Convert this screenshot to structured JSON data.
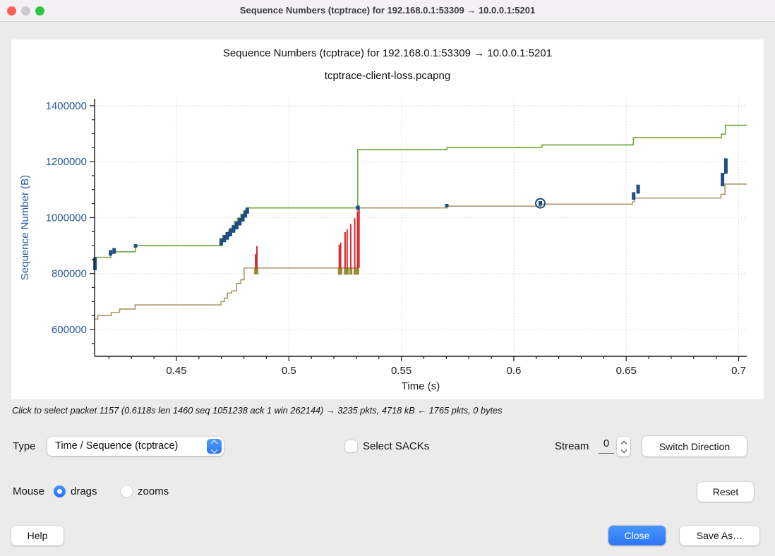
{
  "window": {
    "title": "Sequence Numbers (tcptrace) for 192.168.0.1:53309 → 10.0.0.1:5201"
  },
  "status": {
    "text": "Click to select packet 1157 (0.6118s len 1460 seq 1051238 ack 1 win 262144) → 3235 pkts, 4718 kB ← 1765 pkts, 0 bytes"
  },
  "controls": {
    "type_label": "Type",
    "type_value": "Time / Sequence (tcptrace)",
    "select_sacks_label": "Select SACKs",
    "stream_label": "Stream",
    "stream_value": "0",
    "switch_direction_label": "Switch Direction",
    "mouse_label": "Mouse",
    "drags_label": "drags",
    "zooms_label": "zooms",
    "reset_label": "Reset"
  },
  "buttons": {
    "help": "Help",
    "close": "Close",
    "save_as": "Save As…"
  },
  "chart_data": {
    "type": "line",
    "title": "Sequence Numbers (tcptrace) for 192.168.0.1:53309 → 10.0.0.1:5201",
    "subtitle": "tcptrace-client-loss.pcapng",
    "xlabel": "Time (s)",
    "ylabel": "Sequence Number (B)",
    "xlim": [
      0.4136,
      0.7036
    ],
    "ylim": [
      504000,
      1425000
    ],
    "x_major_ticks": [
      0.45,
      0.5,
      0.55,
      0.6,
      0.65,
      0.7
    ],
    "x_minor_step": 0.01,
    "y_major_ticks": [
      600000,
      800000,
      1000000,
      1200000,
      1400000
    ],
    "y_minor_step": 50000,
    "grid": "dotted-major",
    "colors": {
      "rwin_line": "#79a94a",
      "ack_line": "#ae9d72",
      "segment": "#1d4f82",
      "sack": "#d32b2b",
      "dup_ack": "#958d33",
      "grid": "#d6d6d6",
      "axis": "#1a1a1a",
      "y_text": "#28599c"
    },
    "series": [
      {
        "name": "receive-window",
        "type": "step",
        "color": "#79a94a",
        "width": 1.7,
        "points": [
          [
            0.4136,
            858000
          ],
          [
            0.4208,
            872000
          ],
          [
            0.4222,
            878000
          ],
          [
            0.4318,
            900000
          ],
          [
            0.47,
            918000
          ],
          [
            0.4714,
            926000
          ],
          [
            0.4728,
            948000
          ],
          [
            0.4742,
            962000
          ],
          [
            0.4757,
            986000
          ],
          [
            0.4772,
            998000
          ],
          [
            0.4787,
            1012000
          ],
          [
            0.48,
            1022000
          ],
          [
            0.4812,
            1035000
          ],
          [
            0.5306,
            1243000
          ],
          [
            0.5703,
            1251000
          ],
          [
            0.6125,
            1260000
          ],
          [
            0.6532,
            1286000
          ],
          [
            0.6923,
            1298000
          ],
          [
            0.6941,
            1330000
          ],
          [
            0.7036,
            1330000
          ]
        ]
      },
      {
        "name": "ack-line",
        "type": "step",
        "color": "#ae9d72",
        "width": 1.7,
        "points": [
          [
            0.4136,
            637000
          ],
          [
            0.415,
            650000
          ],
          [
            0.421,
            661000
          ],
          [
            0.4247,
            673000
          ],
          [
            0.4316,
            688000
          ],
          [
            0.4698,
            700000
          ],
          [
            0.4713,
            712000
          ],
          [
            0.4726,
            730000
          ],
          [
            0.4745,
            738000
          ],
          [
            0.4767,
            764000
          ],
          [
            0.4786,
            778000
          ],
          [
            0.4801,
            820000
          ],
          [
            0.5306,
            1035000
          ],
          [
            0.5703,
            1041000
          ],
          [
            0.6121,
            1048000
          ],
          [
            0.6528,
            1056000
          ],
          [
            0.6536,
            1070000
          ],
          [
            0.6921,
            1083000
          ],
          [
            0.6939,
            1120000
          ],
          [
            0.7036,
            1120000
          ]
        ]
      },
      {
        "name": "dup-ack-ticks",
        "type": "vbar",
        "color": "#958d33",
        "width": 4,
        "segments": [
          [
            0.4852,
            797000,
            820000
          ],
          [
            0.4858,
            797000,
            820000
          ],
          [
            0.5224,
            796000,
            821000
          ],
          [
            0.5231,
            796000,
            821000
          ],
          [
            0.5251,
            796000,
            821000
          ],
          [
            0.526,
            796000,
            821000
          ],
          [
            0.5276,
            796000,
            821000
          ],
          [
            0.5294,
            796000,
            821000
          ],
          [
            0.5306,
            796000,
            821000
          ]
        ]
      },
      {
        "name": "sack-ranges",
        "type": "vline",
        "color": "#d32b2b",
        "width": 2,
        "segments": [
          [
            0.4852,
            818000,
            870000
          ],
          [
            0.4858,
            818000,
            898000
          ],
          [
            0.5224,
            818000,
            903000
          ],
          [
            0.523,
            818000,
            911000
          ],
          [
            0.525,
            818000,
            948000
          ],
          [
            0.5259,
            818000,
            958000
          ],
          [
            0.5275,
            818000,
            977000
          ],
          [
            0.5293,
            818000,
            998000
          ],
          [
            0.5305,
            818000,
            1021000
          ],
          [
            0.5312,
            820000,
            1034000
          ]
        ]
      },
      {
        "name": "data-segments",
        "type": "vbar",
        "color": "#1d4f82",
        "width": 5,
        "segments": [
          [
            0.4138,
            812000,
            858000
          ],
          [
            0.4207,
            864000,
            884000
          ],
          [
            0.4223,
            871000,
            891000
          ],
          [
            0.4318,
            893000,
            905000
          ],
          [
            0.4699,
            900000,
            926000
          ],
          [
            0.4713,
            912000,
            938000
          ],
          [
            0.4726,
            921000,
            948000
          ],
          [
            0.474,
            933000,
            961000
          ],
          [
            0.4754,
            946000,
            973000
          ],
          [
            0.4768,
            958000,
            986000
          ],
          [
            0.4782,
            972000,
            999000
          ],
          [
            0.4795,
            986000,
            1013000
          ],
          [
            0.4806,
            1000000,
            1026000
          ],
          [
            0.4815,
            1014000,
            1036000
          ],
          [
            0.5307,
            1028000,
            1043000
          ],
          [
            0.5702,
            1037000,
            1049000
          ],
          [
            0.6118,
            1043000,
            1059000
          ],
          [
            0.6533,
            1064000,
            1091000
          ],
          [
            0.6553,
            1086000,
            1118000
          ],
          [
            0.6928,
            1112000,
            1160000
          ],
          [
            0.6943,
            1157000,
            1212000
          ]
        ]
      }
    ],
    "selected_packet": {
      "t": 0.6118,
      "seq": 1051238,
      "radius": 6.5
    }
  }
}
